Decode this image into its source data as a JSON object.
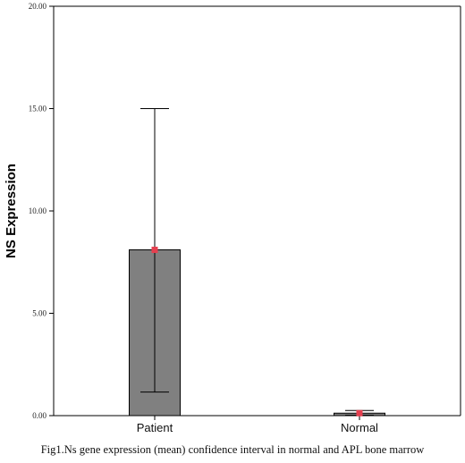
{
  "chart_data": {
    "type": "bar",
    "categories": [
      "Patient",
      "Normal"
    ],
    "values": [
      8.1,
      0.12
    ],
    "error_bars": [
      {
        "low": 1.15,
        "high": 15.0
      },
      {
        "low": 0.02,
        "high": 0.25
      }
    ],
    "ylabel": "NS Expression",
    "xlabel": "",
    "ylim": [
      0,
      20
    ],
    "yticks": [
      "0.00",
      "5.00",
      "10.00",
      "15.00",
      "20.00"
    ],
    "grid": false,
    "colors": {
      "bar": "#808080",
      "bar_edge": "#000000",
      "mean_marker": "#e53f4f",
      "axis": "#000000"
    }
  },
  "caption": "Fig1.Ns gene expression (mean) confidence interval in normal and APL bone marrow"
}
